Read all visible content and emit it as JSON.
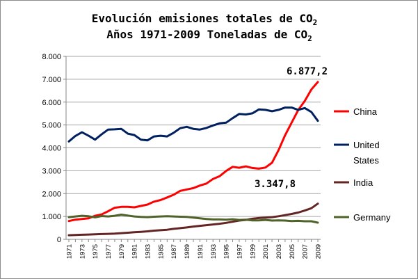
{
  "chart_data": {
    "type": "line",
    "title_line1": "Evolución emisiones totales de CO",
    "title_line1_sub": "2",
    "title_line2": "Años 1971-2009 Toneladas de CO",
    "title_line2_sub": "2",
    "ylim": [
      0,
      8000
    ],
    "yticks": [
      "0",
      "1.000",
      "2.000",
      "3.000",
      "4.000",
      "5.000",
      "6.000",
      "7.000",
      "8.000"
    ],
    "ytick_values": [
      0,
      1000,
      2000,
      3000,
      4000,
      5000,
      6000,
      7000,
      8000
    ],
    "x": [
      1971,
      1972,
      1973,
      1974,
      1975,
      1976,
      1977,
      1978,
      1979,
      1980,
      1981,
      1982,
      1983,
      1984,
      1985,
      1986,
      1987,
      1988,
      1989,
      1990,
      1991,
      1992,
      1993,
      1994,
      1995,
      1996,
      1997,
      1998,
      1999,
      2000,
      2001,
      2002,
      2003,
      2004,
      2005,
      2006,
      2007,
      2008,
      2009
    ],
    "xtick_labels": [
      "1971",
      "1973",
      "1975",
      "1977",
      "1979",
      "1981",
      "1983",
      "1985",
      "1987",
      "1989",
      "1991",
      "1993",
      "1995",
      "1997",
      "1999",
      "2001",
      "2003",
      "2005",
      "2007",
      "2009"
    ],
    "series": [
      {
        "name": "China",
        "label_line1": "China",
        "label_line2": "",
        "color": "#ff0000",
        "values": [
          800,
          860,
          890,
          920,
          1030,
          1090,
          1230,
          1380,
          1420,
          1420,
          1400,
          1460,
          1520,
          1650,
          1720,
          1830,
          1950,
          2120,
          2180,
          2240,
          2350,
          2440,
          2640,
          2760,
          2990,
          3170,
          3130,
          3190,
          3120,
          3090,
          3140,
          3350,
          3900,
          4550,
          5100,
          5650,
          6050,
          6550,
          6877.2
        ]
      },
      {
        "name": "United States",
        "label_line1": "United",
        "label_line2": "States",
        "color": "#002060",
        "values": [
          4280,
          4520,
          4680,
          4530,
          4360,
          4590,
          4800,
          4810,
          4830,
          4620,
          4560,
          4360,
          4330,
          4500,
          4530,
          4500,
          4660,
          4860,
          4920,
          4830,
          4800,
          4870,
          4980,
          5070,
          5100,
          5300,
          5480,
          5460,
          5510,
          5680,
          5660,
          5600,
          5660,
          5760,
          5760,
          5660,
          5740,
          5570,
          5180
        ]
      },
      {
        "name": "India",
        "label_line1": "India",
        "label_line2": "",
        "color": "#632523",
        "values": [
          180,
          190,
          200,
          210,
          220,
          230,
          240,
          250,
          270,
          290,
          310,
          330,
          350,
          380,
          400,
          420,
          460,
          490,
          520,
          560,
          590,
          620,
          650,
          680,
          720,
          770,
          820,
          850,
          900,
          930,
          950,
          970,
          1010,
          1060,
          1110,
          1170,
          1260,
          1360,
          1560
        ]
      },
      {
        "name": "Germany",
        "label_line1": "Germany",
        "label_line2": "",
        "color": "#4f6228",
        "values": [
          970,
          1000,
          1030,
          1010,
          960,
          1020,
          1000,
          1030,
          1080,
          1040,
          1000,
          980,
          970,
          990,
          1000,
          1010,
          1000,
          990,
          980,
          950,
          920,
          890,
          870,
          870,
          860,
          880,
          850,
          860,
          830,
          830,
          850,
          820,
          830,
          820,
          800,
          810,
          790,
          790,
          730
        ]
      }
    ],
    "annotations": [
      {
        "text": "6.877,2",
        "series": "China",
        "year": 2009
      },
      {
        "text": "3.347,8",
        "series": "China",
        "year": 2002
      }
    ],
    "grid": "horizontal",
    "legend": "right"
  }
}
